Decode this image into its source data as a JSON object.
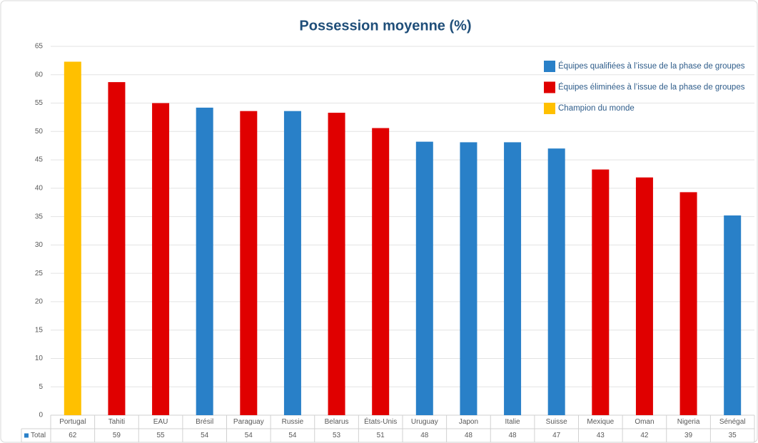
{
  "chart_data": {
    "type": "bar",
    "title": "Possession moyenne (%)",
    "categories": [
      "Portugal",
      "Tahiti",
      "EAU",
      "Brésil",
      "Paraguay",
      "Russie",
      "Belarus",
      "États-Unis",
      "Uruguay",
      "Japon",
      "Italie",
      "Suisse",
      "Mexique",
      "Oman",
      "Nigeria",
      "Sénégal"
    ],
    "series": [
      {
        "name": "Total",
        "color": "#2980c8",
        "values": [
          62.3,
          58.7,
          55.0,
          54.2,
          53.6,
          53.6,
          53.3,
          50.6,
          48.2,
          48.1,
          48.1,
          47.0,
          43.3,
          41.9,
          39.3,
          35.2
        ],
        "value_labels": [
          "62",
          "59",
          "55",
          "54",
          "54",
          "54",
          "53",
          "51",
          "48",
          "48",
          "48",
          "47",
          "43",
          "42",
          "39",
          "35"
        ]
      }
    ],
    "bar_colors": [
      "#ffc000",
      "#e00000",
      "#e00000",
      "#2980c8",
      "#e00000",
      "#2980c8",
      "#e00000",
      "#e00000",
      "#2980c8",
      "#2980c8",
      "#2980c8",
      "#2980c8",
      "#e00000",
      "#e00000",
      "#e00000",
      "#2980c8"
    ],
    "legend": [
      {
        "label": "Équipes qualifiées à l’issue de la phase de groupes",
        "color": "#2980c8"
      },
      {
        "label": "Équipes éliminées à l’issue de la phase de groupes",
        "color": "#e00000"
      },
      {
        "label": "Champion du monde",
        "color": "#ffc000"
      }
    ],
    "ylim": [
      0,
      65
    ],
    "yticks": [
      0,
      5,
      10,
      15,
      20,
      25,
      30,
      35,
      40,
      45,
      50,
      55,
      60,
      65
    ],
    "grid": true
  }
}
